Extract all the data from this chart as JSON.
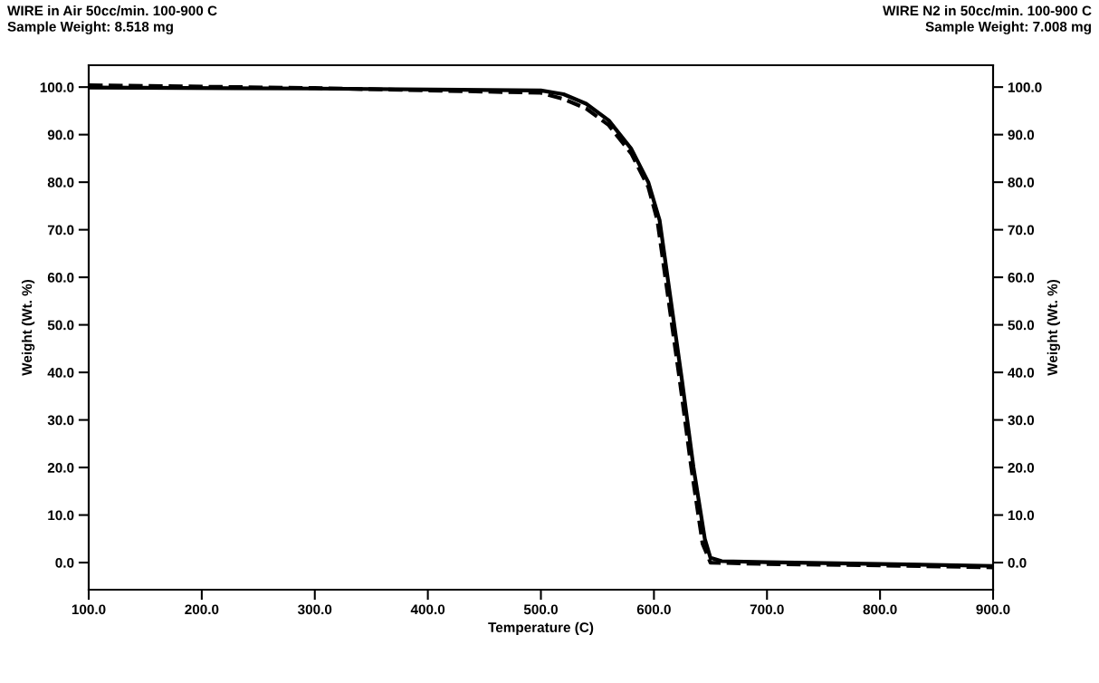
{
  "chart_data": {
    "type": "line",
    "xlabel": "Temperature (C)",
    "ylabel": "Weight (Wt. %)",
    "y2label": "Weight (Wt. %)",
    "annotations": [
      "WIRE in Air 50cc/min. 100-900 C\nSample Weight: 8.518 mg",
      "WIRE N2 in 50cc/min. 100-900 C\nSample Weight: 7.008 mg"
    ],
    "series": [
      {
        "color": "#000000",
        "line_style": "solid",
        "x": [
          100,
          300,
          500,
          520,
          540,
          560,
          580,
          595,
          605,
          615,
          625,
          635,
          645,
          650,
          660,
          700,
          800,
          900
        ],
        "values": [
          99.9,
          99.7,
          99.3,
          98.5,
          96.5,
          93,
          87,
          80,
          72,
          55,
          38,
          20,
          5,
          1,
          0.3,
          0.1,
          -0.3,
          -0.7
        ]
      },
      {
        "color": "#000000",
        "line_style": "dashed",
        "x": [
          100,
          300,
          500,
          520,
          540,
          560,
          580,
          595,
          603,
          613,
          623,
          633,
          643,
          650,
          700,
          800,
          900
        ],
        "values": [
          100.4,
          99.8,
          98.8,
          97.5,
          95.5,
          92,
          86,
          79,
          72,
          55,
          38,
          20,
          4,
          0,
          -0.3,
          -0.6,
          -1.0
        ]
      }
    ],
    "xlim": [
      100,
      900
    ],
    "ylim": [
      -5.7,
      104.6
    ],
    "y2lim": [
      -5.7,
      104.6
    ],
    "xticks": [
      {
        "value": 100,
        "label": "100.0"
      },
      {
        "value": 200,
        "label": "200.0"
      },
      {
        "value": 300,
        "label": "300.0"
      },
      {
        "value": 400,
        "label": "400.0"
      },
      {
        "value": 500,
        "label": "500.0"
      },
      {
        "value": 600,
        "label": "600.0"
      },
      {
        "value": 700,
        "label": "700.0"
      },
      {
        "value": 800,
        "label": "800.0"
      },
      {
        "value": 900,
        "label": "900.0"
      }
    ],
    "yticks": [
      {
        "value": 0,
        "label": "0.0"
      },
      {
        "value": 10,
        "label": "10.0"
      },
      {
        "value": 20,
        "label": "20.0"
      },
      {
        "value": 30,
        "label": "30.0"
      },
      {
        "value": 40,
        "label": "40.0"
      },
      {
        "value": 50,
        "label": "50.0"
      },
      {
        "value": 60,
        "label": "60.0"
      },
      {
        "value": 70,
        "label": "70.0"
      },
      {
        "value": 80,
        "label": "80.0"
      },
      {
        "value": 90,
        "label": "90.0"
      },
      {
        "value": 100,
        "label": "100.0"
      }
    ],
    "y2ticks": [
      {
        "value": 0,
        "label": "0.0"
      },
      {
        "value": 10,
        "label": "10.0"
      },
      {
        "value": 20,
        "label": "20.0"
      },
      {
        "value": 30,
        "label": "30.0"
      },
      {
        "value": 40,
        "label": "40.0"
      },
      {
        "value": 50,
        "label": "50.0"
      },
      {
        "value": 60,
        "label": "60.0"
      },
      {
        "value": 70,
        "label": "70.0"
      },
      {
        "value": 80,
        "label": "80.0"
      },
      {
        "value": 90,
        "label": "90.0"
      },
      {
        "value": 100,
        "label": "100.0"
      }
    ],
    "grid": false,
    "marker": "none"
  }
}
